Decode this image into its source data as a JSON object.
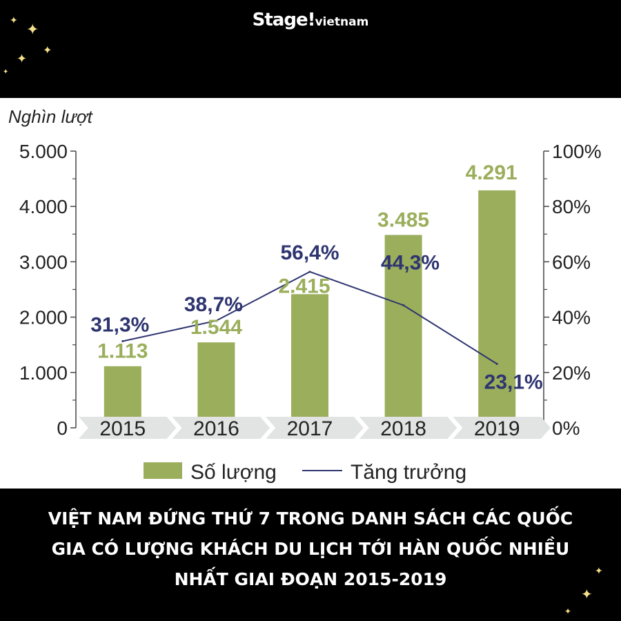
{
  "brand": {
    "name": "Stage!",
    "suffix": "vietnam"
  },
  "caption": {
    "lines": [
      "VIỆT NAM ĐỨNG THỨ 7 TRONG DANH SÁCH CÁC QUỐC",
      "GIA CÓ LƯỢNG KHÁCH DU LỊCH TỚI HÀN QUỐC NHIỀU",
      "NHẤT GIAI ĐOẠN 2015-2019"
    ]
  },
  "colors": {
    "bar": "#9aae5b",
    "line": "#2e3470",
    "background": "#000000",
    "panel": "#ffffff",
    "star": "#f5e08a"
  },
  "chart_data": {
    "type": "bar",
    "ylabel": "Nghìn lượt",
    "categories": [
      "2015",
      "2016",
      "2017",
      "2018",
      "2019"
    ],
    "ylim": [
      0,
      5000
    ],
    "y2lim": [
      0,
      100
    ],
    "yticks": [
      "0",
      "1.000",
      "2.000",
      "3.000",
      "4.000",
      "5.000"
    ],
    "y2ticks": [
      "0%",
      "20%",
      "40%",
      "60%",
      "80%",
      "100%"
    ],
    "legend_position": "bottom",
    "series": [
      {
        "name": "Số lượng",
        "type": "bar",
        "axis": "left",
        "values": [
          1113,
          1544,
          2415,
          3485,
          4291
        ],
        "labels": [
          "1.113",
          "1.544",
          "2.415",
          "3.485",
          "4.291"
        ]
      },
      {
        "name": "Tăng trưởng",
        "type": "line",
        "axis": "right",
        "values": [
          31.3,
          38.7,
          56.4,
          44.3,
          23.1
        ],
        "labels": [
          "31,3%",
          "38,7%",
          "56,4%",
          "44,3%",
          "23,1%"
        ]
      }
    ]
  }
}
